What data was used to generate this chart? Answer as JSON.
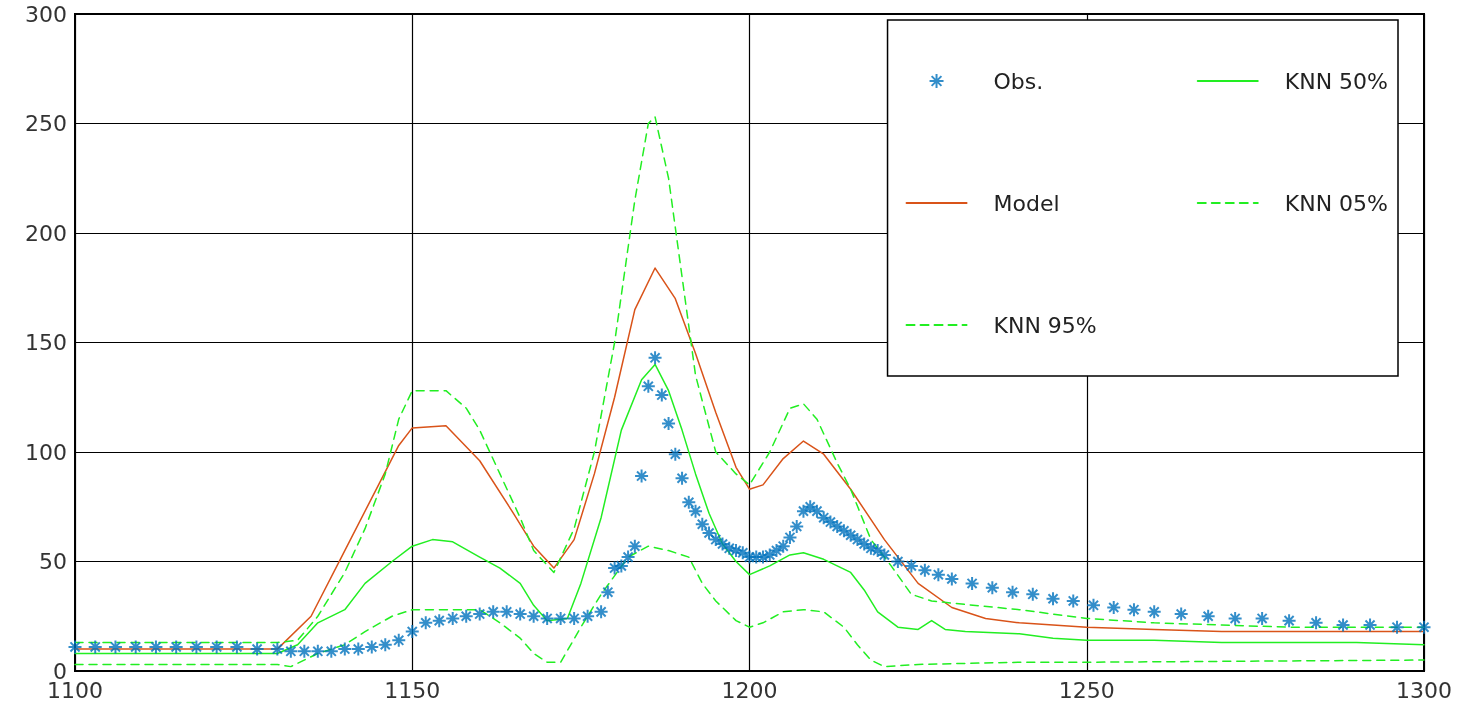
{
  "chart_data": {
    "type": "line",
    "xlim": [
      1100,
      1300
    ],
    "ylim": [
      0,
      300
    ],
    "xticks": [
      1100,
      1150,
      1200,
      1250,
      1300
    ],
    "yticks": [
      0,
      50,
      100,
      150,
      200,
      250,
      300
    ],
    "grid": true,
    "legend": "top right",
    "series": [
      {
        "name": "Obs.",
        "type": "scatter",
        "marker": "cross",
        "color": "#0072bd",
        "x": [
          1100,
          1103,
          1106,
          1109,
          1112,
          1115,
          1118,
          1121,
          1124,
          1127,
          1130,
          1132,
          1134,
          1136,
          1138,
          1140,
          1142,
          1144,
          1146,
          1148,
          1150,
          1152,
          1154,
          1156,
          1158,
          1160,
          1162,
          1164,
          1166,
          1168,
          1170,
          1172,
          1174,
          1176,
          1178,
          1179,
          1180,
          1181,
          1182,
          1183,
          1184,
          1185,
          1186,
          1187,
          1188,
          1189,
          1190,
          1191,
          1192,
          1193,
          1194,
          1195,
          1196,
          1197,
          1198,
          1199,
          1200,
          1201,
          1202,
          1203,
          1204,
          1205,
          1206,
          1207,
          1208,
          1209,
          1210,
          1211,
          1212,
          1213,
          1214,
          1215,
          1216,
          1217,
          1218,
          1219,
          1220,
          1222,
          1224,
          1226,
          1228,
          1230,
          1233,
          1236,
          1239,
          1242,
          1245,
          1248,
          1251,
          1254,
          1257,
          1260,
          1264,
          1268,
          1272,
          1276,
          1280,
          1284,
          1288,
          1292,
          1296,
          1300
        ],
        "values": [
          11,
          11,
          11,
          11,
          11,
          11,
          11,
          11,
          11,
          10,
          10,
          9,
          9,
          9,
          9,
          10,
          10,
          11,
          12,
          14,
          18,
          22,
          23,
          24,
          25,
          26,
          27,
          27,
          26,
          25,
          24,
          24,
          24,
          25,
          27,
          36,
          47,
          48,
          52,
          57,
          89,
          130,
          143,
          126,
          113,
          99,
          88,
          77,
          73,
          67,
          63,
          60,
          58,
          56,
          55,
          54,
          52,
          52,
          52,
          53,
          55,
          57,
          61,
          66,
          73,
          75,
          73,
          70,
          68,
          66,
          64,
          62,
          60,
          58,
          56,
          55,
          53,
          50,
          48,
          46,
          44,
          42,
          40,
          38,
          36,
          35,
          33,
          32,
          30,
          29,
          28,
          27,
          26,
          25,
          24,
          24,
          23,
          22,
          21,
          21,
          20,
          20
        ]
      },
      {
        "name": "Model",
        "marker": "none",
        "line_style": "solid",
        "color": "#d95319",
        "x": [
          1100,
          1130,
          1135,
          1140,
          1145,
          1148,
          1150,
          1155,
          1160,
          1165,
          1168,
          1171,
          1174,
          1177,
          1180,
          1183,
          1186,
          1189,
          1192,
          1195,
          1198,
          1200,
          1202,
          1205,
          1208,
          1211,
          1215,
          1220,
          1225,
          1230,
          1235,
          1240,
          1250,
          1260,
          1270,
          1280,
          1290,
          1300
        ],
        "values": [
          10,
          10,
          25,
          55,
          85,
          103,
          111,
          112,
          96,
          72,
          57,
          47,
          60,
          90,
          125,
          165,
          184,
          170,
          145,
          118,
          93,
          83,
          85,
          97,
          105,
          99,
          83,
          60,
          40,
          29,
          24,
          22,
          20,
          19,
          18,
          18,
          18,
          18
        ]
      },
      {
        "name": "KNN 95%",
        "marker": "none",
        "line_style": "dashed",
        "color": "#22ee22",
        "x": [
          1100,
          1130,
          1133,
          1136,
          1140,
          1143,
          1146,
          1148,
          1150,
          1155,
          1158,
          1160,
          1163,
          1166,
          1168,
          1171,
          1174,
          1177,
          1180,
          1183,
          1185,
          1186,
          1188,
          1190,
          1192,
          1195,
          1198,
          1200,
          1203,
          1206,
          1208,
          1210,
          1213,
          1215,
          1218,
          1221,
          1224,
          1227,
          1230,
          1240,
          1250,
          1260,
          1270,
          1280,
          1290,
          1300
        ],
        "values": [
          13,
          13,
          14,
          25,
          45,
          65,
          90,
          115,
          128,
          128,
          120,
          110,
          90,
          70,
          55,
          45,
          65,
          100,
          150,
          215,
          250,
          253,
          225,
          180,
          135,
          100,
          90,
          85,
          100,
          120,
          122,
          115,
          95,
          83,
          60,
          48,
          35,
          32,
          31,
          28,
          24,
          22,
          21,
          20,
          20,
          20
        ]
      },
      {
        "name": "KNN 50%",
        "marker": "none",
        "line_style": "solid",
        "color": "#22ee22",
        "x": [
          1100,
          1130,
          1133,
          1136,
          1140,
          1143,
          1147,
          1150,
          1153,
          1156,
          1160,
          1163,
          1166,
          1168,
          1170,
          1173,
          1175,
          1178,
          1181,
          1184,
          1186,
          1188,
          1190,
          1192,
          1194,
          1196,
          1198,
          1200,
          1203,
          1206,
          1208,
          1211,
          1215,
          1217,
          1219,
          1222,
          1225,
          1227,
          1229,
          1232,
          1240,
          1245,
          1250,
          1260,
          1270,
          1280,
          1290,
          1300
        ],
        "values": [
          8,
          8,
          12,
          22,
          28,
          40,
          50,
          57,
          60,
          59,
          52,
          47,
          40,
          30,
          23,
          24,
          40,
          70,
          110,
          133,
          140,
          128,
          110,
          90,
          72,
          58,
          50,
          44,
          48,
          53,
          54,
          51,
          45,
          37,
          27,
          20,
          19,
          23,
          19,
          18,
          17,
          15,
          14,
          14,
          13,
          13,
          13,
          12
        ]
      },
      {
        "name": "KNN 05%",
        "marker": "none",
        "line_style": "dashed",
        "color": "#22ee22",
        "x": [
          1100,
          1130,
          1132,
          1136,
          1140,
          1143,
          1147,
          1150,
          1160,
          1163,
          1166,
          1168,
          1170,
          1172,
          1175,
          1178,
          1182,
          1185,
          1188,
          1191,
          1193,
          1195,
          1198,
          1200,
          1202,
          1205,
          1208,
          1211,
          1214,
          1216,
          1218,
          1220,
          1225,
          1240,
          1250,
          1300
        ],
        "values": [
          3,
          3,
          2,
          8,
          12,
          18,
          25,
          28,
          28,
          22,
          15,
          8,
          4,
          4,
          20,
          35,
          52,
          57,
          55,
          52,
          40,
          32,
          23,
          20,
          22,
          27,
          28,
          27,
          20,
          12,
          5,
          2,
          3,
          4,
          4,
          5
        ]
      }
    ]
  }
}
